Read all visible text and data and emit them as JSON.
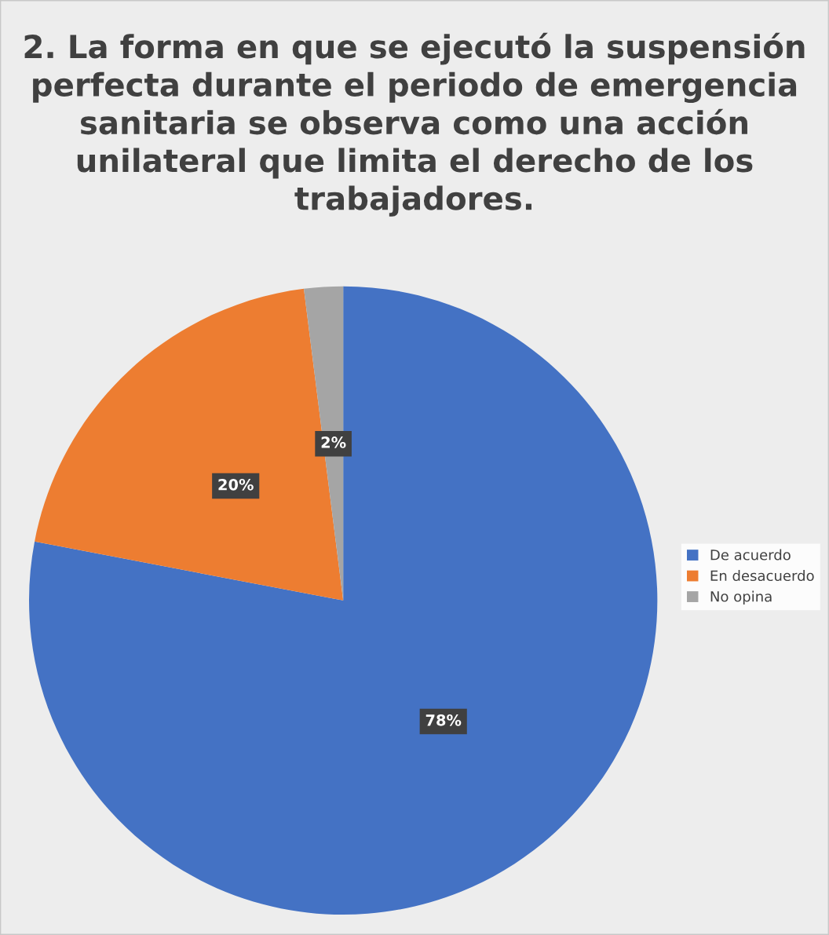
{
  "chart_data": {
    "type": "pie",
    "title": "2. La forma en que se ejecutó la suspensión perfecta durante el periodo de emergencia sanitaria se observa como una acción unilateral que limita el derecho de los trabajadores.",
    "categories": [
      "De acuerdo",
      "En desacuerdo",
      "No opina"
    ],
    "values": [
      78,
      20,
      2
    ],
    "colors": [
      "#4472c4",
      "#ed7d31",
      "#a5a5a5"
    ],
    "value_labels": [
      "78%",
      "20%",
      "2%"
    ],
    "legend": "right"
  }
}
